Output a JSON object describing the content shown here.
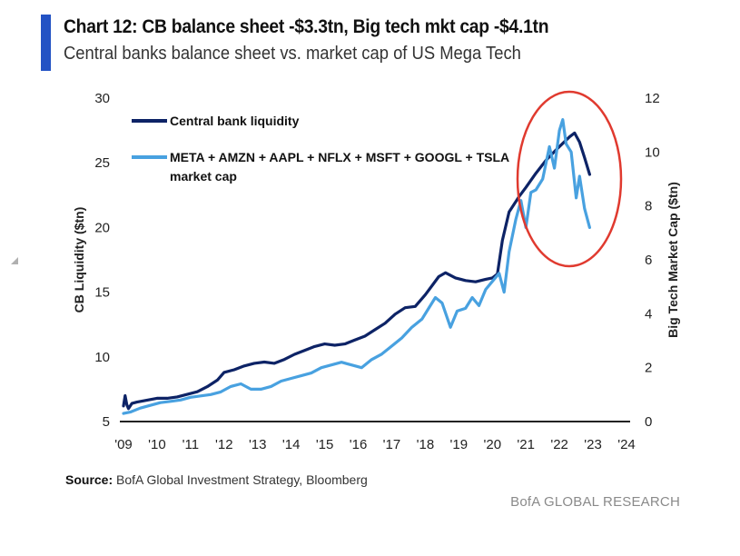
{
  "header": {
    "title": "Chart 12: CB balance sheet -$3.3tn, Big tech mkt cap -$4.1tn",
    "subtitle": "Central banks balance sheet vs. market cap of US Mega Tech",
    "accent_color": "#2352c4"
  },
  "footer": {
    "source_label": "Source:",
    "source_text": "BofA Global Investment Strategy, Bloomberg",
    "brand": "BofA GLOBAL RESEARCH"
  },
  "chart_data": {
    "type": "line",
    "title": "Chart 12: CB balance sheet -$3.3tn, Big tech mkt cap -$4.1tn",
    "subtitle": "Central banks balance sheet vs. market cap of US Mega Tech",
    "xlabel": "",
    "ylabel": "CB Liquidity ($tn)",
    "y2label": "Big Tech Market Cap ($tn)",
    "xlim": [
      2009,
      2024
    ],
    "ylim": [
      5,
      30
    ],
    "y2lim": [
      0,
      12
    ],
    "x_ticks": [
      "'09",
      "'10",
      "'11",
      "'12",
      "'13",
      "'14",
      "'15",
      "'16",
      "'17",
      "'18",
      "'19",
      "'20",
      "'21",
      "'22",
      "'23",
      "'24"
    ],
    "y_ticks": [
      "5",
      "10",
      "15",
      "20",
      "25",
      "30"
    ],
    "y2_ticks": [
      "0",
      "2",
      "4",
      "6",
      "8",
      "10",
      "12"
    ],
    "grid": false,
    "legend_position": "top-left",
    "annotation": "red ellipse highlighting 2021-2022 peak and decline",
    "annotation_color": "#e03a2f",
    "series": [
      {
        "name": "Central bank liquidity",
        "axis": "left",
        "color": "#0d2366",
        "x": [
          2009.0,
          2009.05,
          2009.1,
          2009.15,
          2009.25,
          2009.4,
          2009.6,
          2009.8,
          2010.0,
          2010.3,
          2010.6,
          2010.9,
          2011.2,
          2011.5,
          2011.8,
          2012.0,
          2012.3,
          2012.6,
          2012.9,
          2013.2,
          2013.5,
          2013.8,
          2014.1,
          2014.4,
          2014.7,
          2015.0,
          2015.3,
          2015.6,
          2015.9,
          2016.2,
          2016.5,
          2016.8,
          2017.1,
          2017.4,
          2017.7,
          2018.0,
          2018.2,
          2018.4,
          2018.6,
          2018.9,
          2019.2,
          2019.5,
          2019.8,
          2020.0,
          2020.15,
          2020.3,
          2020.5,
          2020.8,
          2021.0,
          2021.3,
          2021.6,
          2021.9,
          2022.1,
          2022.3,
          2022.45,
          2022.6,
          2022.75,
          2022.9
        ],
        "values": [
          6.2,
          7.0,
          6.3,
          6.0,
          6.4,
          6.5,
          6.6,
          6.7,
          6.8,
          6.8,
          6.9,
          7.1,
          7.3,
          7.7,
          8.2,
          8.8,
          9.0,
          9.3,
          9.5,
          9.6,
          9.5,
          9.8,
          10.2,
          10.5,
          10.8,
          11.0,
          10.9,
          11.0,
          11.3,
          11.6,
          12.1,
          12.6,
          13.3,
          13.8,
          13.9,
          14.8,
          15.5,
          16.2,
          16.5,
          16.1,
          15.9,
          15.8,
          16.0,
          16.1,
          16.4,
          19.0,
          21.2,
          22.4,
          23.1,
          24.2,
          25.2,
          26.0,
          26.5,
          27.0,
          27.3,
          26.6,
          25.4,
          24.1
        ]
      },
      {
        "name": "META + AMZN + AAPL + NFLX + MSFT + GOOGL + TSLA market cap",
        "axis": "right",
        "color": "#48a1e0",
        "x": [
          2009.0,
          2009.2,
          2009.5,
          2009.8,
          2010.1,
          2010.4,
          2010.7,
          2011.0,
          2011.3,
          2011.6,
          2011.9,
          2012.2,
          2012.5,
          2012.8,
          2013.1,
          2013.4,
          2013.7,
          2014.0,
          2014.3,
          2014.6,
          2014.9,
          2015.2,
          2015.5,
          2015.8,
          2016.1,
          2016.4,
          2016.7,
          2017.0,
          2017.3,
          2017.6,
          2017.9,
          2018.1,
          2018.3,
          2018.5,
          2018.75,
          2018.95,
          2019.2,
          2019.4,
          2019.6,
          2019.8,
          2020.0,
          2020.2,
          2020.35,
          2020.5,
          2020.7,
          2020.85,
          2021.0,
          2021.15,
          2021.3,
          2021.5,
          2021.7,
          2021.85,
          2022.0,
          2022.1,
          2022.2,
          2022.35,
          2022.5,
          2022.6,
          2022.75,
          2022.9
        ],
        "values": [
          0.3,
          0.35,
          0.5,
          0.6,
          0.7,
          0.75,
          0.8,
          0.9,
          0.95,
          1.0,
          1.1,
          1.3,
          1.4,
          1.2,
          1.2,
          1.3,
          1.5,
          1.6,
          1.7,
          1.8,
          2.0,
          2.1,
          2.2,
          2.1,
          2.0,
          2.3,
          2.5,
          2.8,
          3.1,
          3.5,
          3.8,
          4.2,
          4.6,
          4.4,
          3.5,
          4.1,
          4.2,
          4.6,
          4.3,
          4.9,
          5.2,
          5.5,
          4.8,
          6.3,
          7.5,
          8.2,
          7.2,
          8.5,
          8.6,
          9.0,
          10.2,
          9.4,
          10.8,
          11.2,
          10.3,
          10.0,
          8.3,
          9.1,
          7.9,
          7.2
        ]
      }
    ]
  }
}
